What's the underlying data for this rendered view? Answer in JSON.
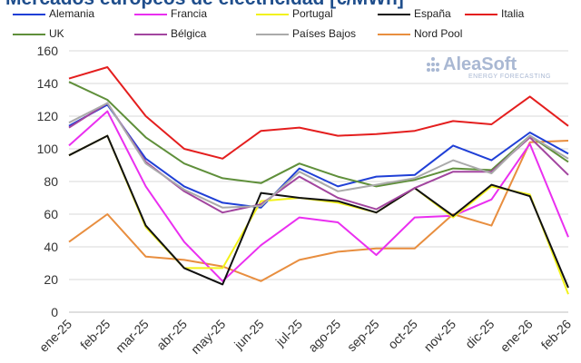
{
  "title": "Mercados europeos de electricidad [€/MWh]",
  "logo": {
    "name": "AleaSoft",
    "tagline": "ENERGY FORECASTING",
    "color": "#a9b8d3"
  },
  "chart_data": {
    "type": "line",
    "title": "Mercados europeos de electricidad [€/MWh]",
    "xlabel": "",
    "ylabel": "",
    "ylim": [
      0,
      160
    ],
    "yticks": [
      0,
      20,
      40,
      60,
      80,
      100,
      120,
      140,
      160
    ],
    "grid": true,
    "legend_position": "top",
    "categories": [
      "ene-25",
      "feb-25",
      "mar-25",
      "abr-25",
      "may-25",
      "jun-25",
      "jul-25",
      "ago-25",
      "sep-25",
      "oct-25",
      "nov-25",
      "dic-25",
      "ene-26",
      "feb-26"
    ],
    "series": [
      {
        "name": "Alemania",
        "color": "#1f3fd6",
        "values": [
          114,
          127,
          94,
          77,
          67,
          64,
          88,
          77,
          83,
          84,
          102,
          93,
          110,
          97
        ]
      },
      {
        "name": "Francia",
        "color": "#ea2ff0",
        "values": [
          102,
          123,
          77,
          43,
          19,
          41,
          58,
          55,
          35,
          58,
          59,
          69,
          103,
          46
        ]
      },
      {
        "name": "Portugal",
        "color": "#f2f21a",
        "values": [
          96,
          108,
          52,
          27,
          27,
          68,
          70,
          67,
          61,
          76,
          58,
          77,
          72,
          11
        ]
      },
      {
        "name": "España",
        "color": "#111111",
        "values": [
          96,
          108,
          53,
          27,
          17,
          73,
          70,
          68,
          61,
          76,
          59,
          78,
          71,
          15
        ]
      },
      {
        "name": "Italia",
        "color": "#e41e1e",
        "values": [
          143,
          150,
          120,
          100,
          94,
          111,
          113,
          108,
          109,
          111,
          117,
          115,
          132,
          114
        ]
      },
      {
        "name": "UK",
        "color": "#5f8f3a",
        "values": [
          141,
          130,
          107,
          91,
          82,
          79,
          91,
          83,
          77,
          81,
          88,
          87,
          108,
          92
        ]
      },
      {
        "name": "Bélgica",
        "color": "#a2459f",
        "values": [
          113,
          128,
          92,
          74,
          61,
          66,
          83,
          70,
          63,
          76,
          86,
          86,
          107,
          84
        ]
      },
      {
        "name": "Países Bajos",
        "color": "#aaaaaa",
        "values": [
          116,
          128,
          91,
          75,
          64,
          65,
          86,
          74,
          78,
          82,
          93,
          85,
          108,
          94
        ]
      },
      {
        "name": "Nord Pool",
        "color": "#e88e3f",
        "values": [
          43,
          60,
          34,
          32,
          28,
          19,
          32,
          37,
          39,
          39,
          60,
          53,
          104,
          105
        ]
      }
    ]
  }
}
